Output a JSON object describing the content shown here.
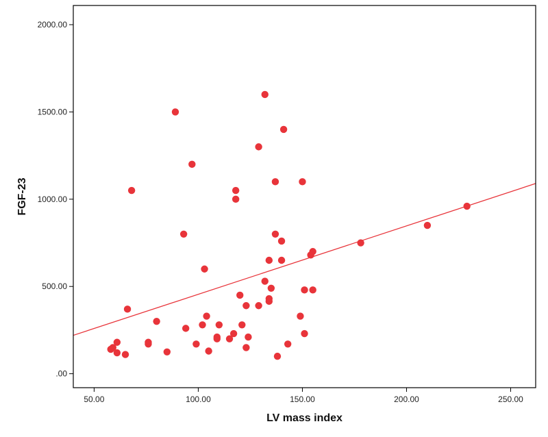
{
  "chart_data": {
    "type": "scatter",
    "title": "",
    "xlabel": "LV mass index",
    "ylabel": "FGF-23",
    "xlim": [
      40,
      262
    ],
    "ylim": [
      -80,
      2110
    ],
    "x_ticks": [
      50,
      100,
      150,
      200,
      250
    ],
    "x_tick_labels": [
      "50.00",
      "100.00",
      "150.00",
      "200.00",
      "250.00"
    ],
    "y_ticks": [
      0,
      500,
      1000,
      1500,
      2000
    ],
    "y_tick_labels": [
      ".00",
      "500.00",
      "1000.00",
      "1500.00",
      "2000.00"
    ],
    "grid": false,
    "legend": "none",
    "colors": {
      "points": "#e8343a",
      "fit_line": "#e8343a",
      "frame": "#000000"
    },
    "series": [
      {
        "points": [
          {
            "x": 58,
            "y": 140
          },
          {
            "x": 59,
            "y": 150
          },
          {
            "x": 61,
            "y": 180
          },
          {
            "x": 61,
            "y": 120
          },
          {
            "x": 65,
            "y": 110
          },
          {
            "x": 66,
            "y": 370
          },
          {
            "x": 68,
            "y": 1050
          },
          {
            "x": 76,
            "y": 180
          },
          {
            "x": 76,
            "y": 170
          },
          {
            "x": 80,
            "y": 300
          },
          {
            "x": 85,
            "y": 125
          },
          {
            "x": 89,
            "y": 1500
          },
          {
            "x": 93,
            "y": 800
          },
          {
            "x": 94,
            "y": 260
          },
          {
            "x": 97,
            "y": 1200
          },
          {
            "x": 99,
            "y": 170
          },
          {
            "x": 102,
            "y": 280
          },
          {
            "x": 103,
            "y": 600
          },
          {
            "x": 104,
            "y": 330
          },
          {
            "x": 105,
            "y": 130
          },
          {
            "x": 109,
            "y": 210
          },
          {
            "x": 109,
            "y": 200
          },
          {
            "x": 110,
            "y": 280
          },
          {
            "x": 115,
            "y": 200
          },
          {
            "x": 117,
            "y": 230
          },
          {
            "x": 118,
            "y": 1050
          },
          {
            "x": 118,
            "y": 1000
          },
          {
            "x": 120,
            "y": 450
          },
          {
            "x": 121,
            "y": 280
          },
          {
            "x": 123,
            "y": 390
          },
          {
            "x": 123,
            "y": 150
          },
          {
            "x": 124,
            "y": 210
          },
          {
            "x": 129,
            "y": 1300
          },
          {
            "x": 129,
            "y": 390
          },
          {
            "x": 132,
            "y": 1600
          },
          {
            "x": 132,
            "y": 530
          },
          {
            "x": 134,
            "y": 650
          },
          {
            "x": 134,
            "y": 430
          },
          {
            "x": 134,
            "y": 415
          },
          {
            "x": 135,
            "y": 490
          },
          {
            "x": 137,
            "y": 1100
          },
          {
            "x": 137,
            "y": 800
          },
          {
            "x": 138,
            "y": 100
          },
          {
            "x": 140,
            "y": 760
          },
          {
            "x": 140,
            "y": 650
          },
          {
            "x": 141,
            "y": 1400
          },
          {
            "x": 143,
            "y": 170
          },
          {
            "x": 149,
            "y": 330
          },
          {
            "x": 150,
            "y": 1100
          },
          {
            "x": 151,
            "y": 480
          },
          {
            "x": 151,
            "y": 230
          },
          {
            "x": 154,
            "y": 680
          },
          {
            "x": 155,
            "y": 700
          },
          {
            "x": 155,
            "y": 480
          },
          {
            "x": 178,
            "y": 750
          },
          {
            "x": 210,
            "y": 850
          },
          {
            "x": 229,
            "y": 960
          }
        ]
      }
    ],
    "fit_line": {
      "x": [
        40,
        262
      ],
      "y": [
        220,
        1090
      ]
    }
  }
}
